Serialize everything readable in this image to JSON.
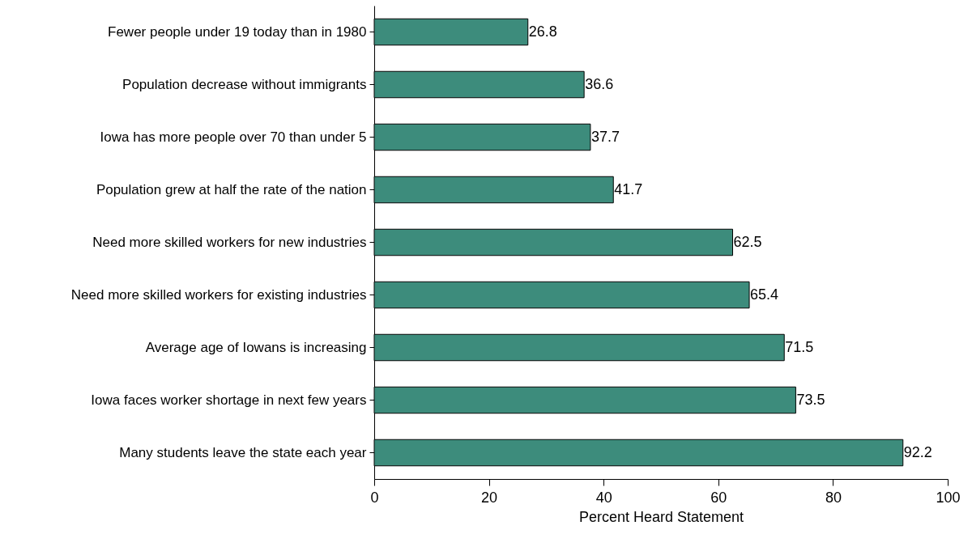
{
  "chart_data": {
    "type": "bar",
    "orientation": "horizontal",
    "xlabel": "Percent Heard Statement",
    "categories": [
      "Fewer people under 19 today than in 1980",
      "Population decrease without  immigrants",
      "Iowa has more people over 70 than under 5",
      "Population grew at half the rate of the nation",
      "Need more skilled workers for new industries",
      "Need more skilled workers for existing industries",
      "Average age of Iowans is increasing",
      "Iowa faces worker shortage in next few years",
      "Many students leave the state each year"
    ],
    "values": [
      26.8,
      36.6,
      37.7,
      41.7,
      62.5,
      65.4,
      71.5,
      73.5,
      92.2
    ],
    "color": "#3d8c7c",
    "xlim": [
      0,
      100
    ],
    "xticks": [
      0,
      20,
      40,
      60,
      80,
      100
    ],
    "data_labels": true,
    "grid": false
  }
}
